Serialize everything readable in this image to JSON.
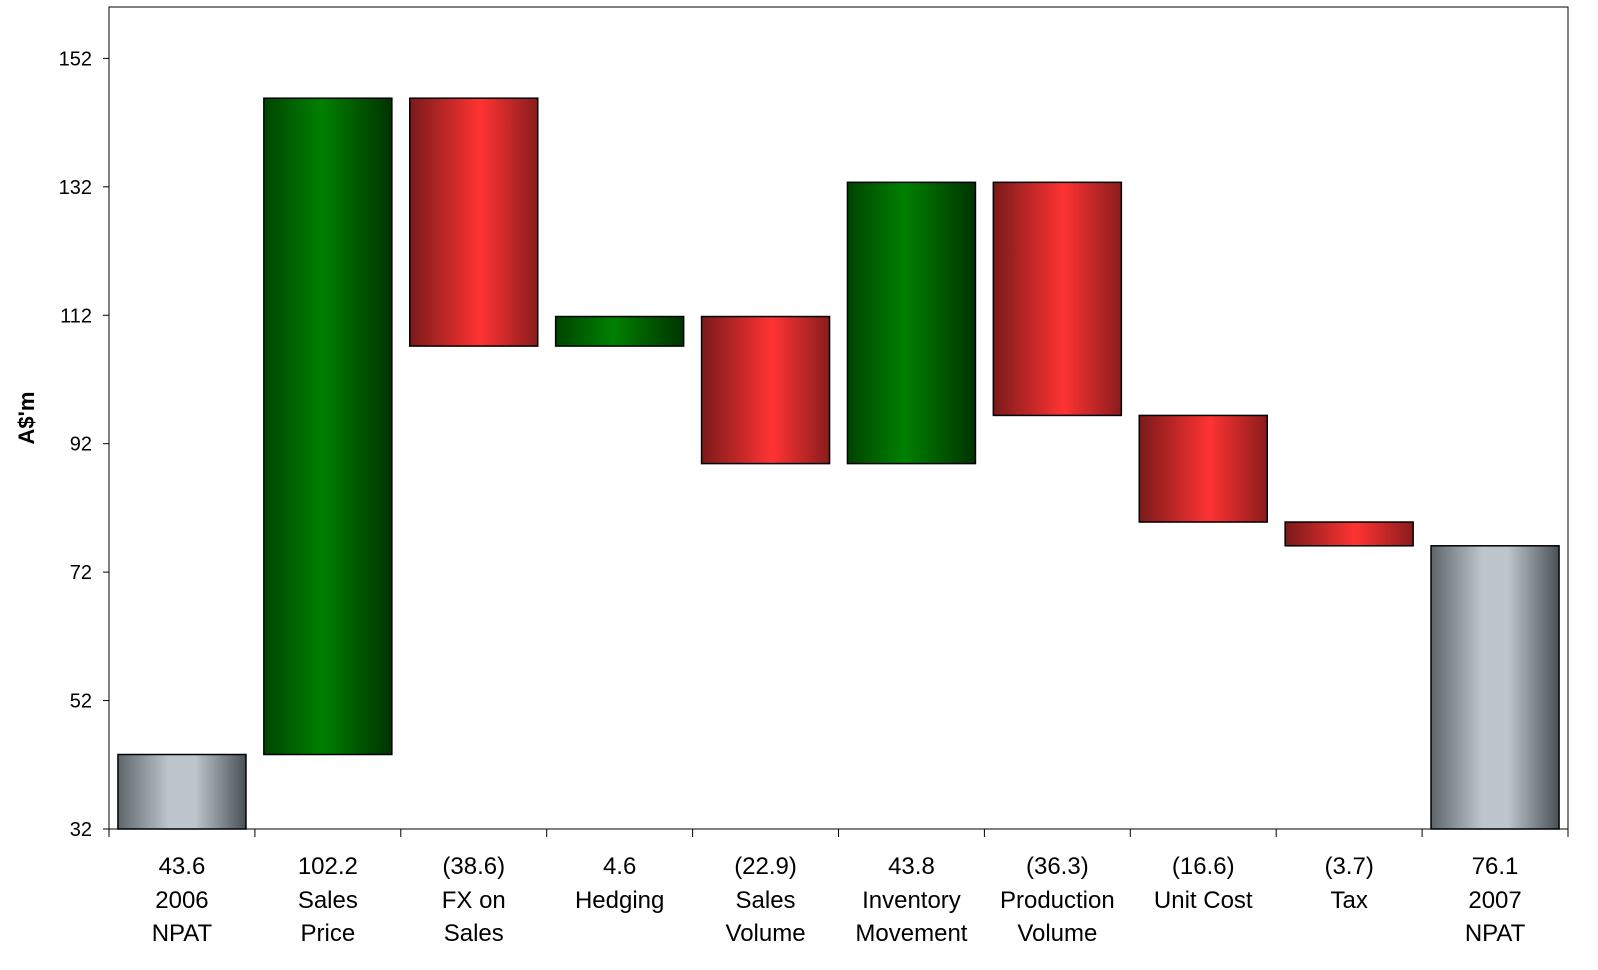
{
  "chart_data": {
    "type": "bar",
    "subtype": "waterfall",
    "title": "",
    "xlabel": "",
    "ylabel": "A$'m",
    "ylim": [
      32,
      160
    ],
    "yticks": [
      32,
      52,
      72,
      92,
      112,
      132,
      152
    ],
    "grid": false,
    "legend": "none",
    "colors": {
      "total": "#aab4bc",
      "increase": "#007a00",
      "decrease": "#ff3333",
      "outline": "#000000"
    },
    "categories": [
      {
        "value_label": "43.6",
        "lines": [
          "2006",
          "NPAT"
        ],
        "kind": "total",
        "start": 32,
        "end": 43.6
      },
      {
        "value_label": "102.2",
        "lines": [
          "Sales",
          "Price"
        ],
        "kind": "increase",
        "start": 43.6,
        "end": 145.8
      },
      {
        "value_label": "(38.6)",
        "lines": [
          "FX on",
          "Sales"
        ],
        "kind": "decrease",
        "start": 145.8,
        "end": 107.2
      },
      {
        "value_label": "4.6",
        "lines": [
          "Hedging"
        ],
        "kind": "increase",
        "start": 107.2,
        "end": 111.8
      },
      {
        "value_label": "(22.9)",
        "lines": [
          "Sales",
          "Volume"
        ],
        "kind": "decrease",
        "start": 111.8,
        "end": 88.9
      },
      {
        "value_label": "43.8",
        "lines": [
          "Inventory",
          "Movement"
        ],
        "kind": "increase",
        "start": 88.9,
        "end": 132.7
      },
      {
        "value_label": "(36.3)",
        "lines": [
          "Production",
          "Volume"
        ],
        "kind": "decrease",
        "start": 132.7,
        "end": 96.4
      },
      {
        "value_label": "(16.6)",
        "lines": [
          "Unit Cost"
        ],
        "kind": "decrease",
        "start": 96.4,
        "end": 79.8
      },
      {
        "value_label": "(3.7)",
        "lines": [
          "Tax"
        ],
        "kind": "decrease",
        "start": 79.8,
        "end": 76.1
      },
      {
        "value_label": "76.1",
        "lines": [
          "2007",
          "NPAT"
        ],
        "kind": "total",
        "start": 32,
        "end": 76.1
      }
    ]
  }
}
